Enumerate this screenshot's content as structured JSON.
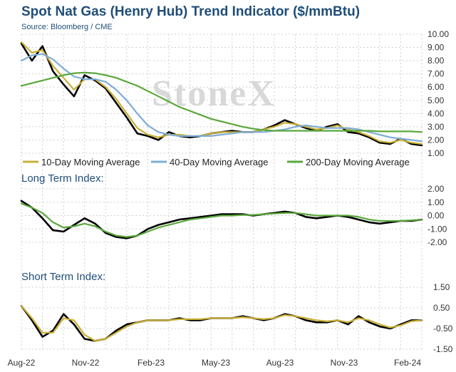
{
  "title": "Spot Nat Gas (Henry Hub) Trend Indicator ($/mmBtu)",
  "source": "Source: Bloomberg / CME",
  "watermark": "StoneX",
  "colors": {
    "price": "#000000",
    "ma10": "#c9b037",
    "ma40": "#7eadd6",
    "ma200": "#5aa83c",
    "title": "#1f4e79"
  },
  "chart_data": [
    {
      "type": "line",
      "panel": "price",
      "title": "",
      "xlabel": "",
      "ylabel": "",
      "ylim": [
        1.0,
        10.0
      ],
      "yticks": [
        "10.00",
        "9.00",
        "8.00",
        "7.00",
        "6.00",
        "5.00",
        "4.00",
        "3.00",
        "2.00",
        "1.00"
      ],
      "ytick_values": [
        10,
        9,
        8,
        7,
        6,
        5,
        4,
        3,
        2,
        1
      ],
      "x_months": [
        0,
        0.5,
        1,
        1.5,
        2,
        2.5,
        3,
        3.5,
        4,
        4.5,
        5,
        5.5,
        6,
        6.5,
        7,
        7.5,
        8,
        8.5,
        9,
        9.5,
        10,
        10.5,
        11,
        11.5,
        12,
        12.5,
        13,
        13.5,
        14,
        14.5,
        15,
        15.5,
        16,
        16.5,
        17,
        17.5,
        18,
        18.5,
        19
      ],
      "series": [
        {
          "name": "Spot",
          "color_key": "price",
          "values": [
            9.3,
            8.0,
            9.1,
            7.2,
            6.2,
            5.3,
            6.9,
            6.5,
            5.9,
            4.8,
            3.7,
            2.5,
            2.3,
            2.0,
            2.6,
            2.3,
            2.2,
            2.3,
            2.5,
            2.6,
            2.7,
            2.6,
            2.6,
            2.8,
            3.1,
            3.5,
            3.2,
            2.9,
            2.7,
            3.0,
            3.2,
            2.6,
            2.5,
            2.2,
            1.8,
            1.7,
            2.1,
            1.7,
            1.6
          ]
        },
        {
          "name": "10-Day Moving Average",
          "color_key": "ma10",
          "values": [
            9.4,
            8.6,
            8.8,
            7.6,
            6.7,
            5.8,
            6.6,
            6.6,
            6.0,
            5.1,
            4.0,
            2.9,
            2.4,
            2.2,
            2.4,
            2.4,
            2.3,
            2.3,
            2.5,
            2.6,
            2.6,
            2.6,
            2.6,
            2.8,
            3.0,
            3.3,
            3.2,
            3.0,
            2.8,
            2.9,
            3.1,
            2.8,
            2.6,
            2.3,
            1.9,
            1.8,
            2.0,
            1.8,
            1.7
          ]
        },
        {
          "name": "40-Day Moving Average",
          "color_key": "ma40",
          "values": [
            8.0,
            8.4,
            8.5,
            8.1,
            7.4,
            6.8,
            6.6,
            6.6,
            6.4,
            5.8,
            5.0,
            4.0,
            3.1,
            2.6,
            2.4,
            2.3,
            2.3,
            2.3,
            2.3,
            2.4,
            2.5,
            2.6,
            2.6,
            2.6,
            2.7,
            2.8,
            3.0,
            3.1,
            3.0,
            2.9,
            2.9,
            2.9,
            2.8,
            2.6,
            2.4,
            2.2,
            2.1,
            2.0,
            1.9
          ]
        },
        {
          "name": "200-Day Moving Average",
          "color_key": "ma200",
          "values": [
            6.1,
            6.3,
            6.5,
            6.7,
            6.9,
            7.05,
            7.1,
            7.05,
            6.9,
            6.7,
            6.4,
            6.1,
            5.7,
            5.3,
            4.9,
            4.5,
            4.2,
            3.9,
            3.6,
            3.4,
            3.2,
            3.0,
            2.85,
            2.75,
            2.7,
            2.7,
            2.7,
            2.7,
            2.7,
            2.7,
            2.7,
            2.7,
            2.7,
            2.7,
            2.65,
            2.65,
            2.65,
            2.65,
            2.6
          ]
        }
      ],
      "legend": [
        "10-Day Moving Average",
        "40-Day Moving Average",
        "200-Day Moving Average"
      ],
      "legend_position": "bottom"
    },
    {
      "type": "line",
      "panel": "long",
      "title": "Long Term Index:",
      "ylim": [
        -2.0,
        2.0
      ],
      "yticks": [
        "2.00",
        "1.00",
        "0.00",
        "-1.00",
        "-2.00"
      ],
      "ytick_values": [
        2,
        1,
        0,
        -1,
        -2
      ],
      "x_months": [
        0,
        0.5,
        1,
        1.5,
        2,
        2.5,
        3,
        3.5,
        4,
        4.5,
        5,
        5.5,
        6,
        6.5,
        7,
        7.5,
        8,
        8.5,
        9,
        9.5,
        10,
        10.5,
        11,
        11.5,
        12,
        12.5,
        13,
        13.5,
        14,
        14.5,
        15,
        15.5,
        16,
        16.5,
        17,
        17.5,
        18,
        18.5,
        19
      ],
      "series": [
        {
          "name": "",
          "color_key": "price",
          "values": [
            1.1,
            0.6,
            -0.2,
            -1.1,
            -1.2,
            -0.7,
            -0.2,
            -0.6,
            -1.3,
            -1.6,
            -1.7,
            -1.5,
            -1.0,
            -0.7,
            -0.5,
            -0.3,
            -0.2,
            -0.1,
            0.0,
            0.1,
            0.1,
            0.1,
            0.0,
            0.1,
            0.2,
            0.3,
            0.2,
            -0.1,
            -0.2,
            -0.1,
            0.0,
            -0.1,
            -0.3,
            -0.5,
            -0.6,
            -0.5,
            -0.4,
            -0.4,
            -0.3
          ]
        },
        {
          "name": "",
          "color_key": "ma200",
          "values": [
            0.9,
            0.6,
            0.2,
            -0.5,
            -0.9,
            -0.8,
            -0.6,
            -0.8,
            -1.2,
            -1.5,
            -1.6,
            -1.5,
            -1.2,
            -0.9,
            -0.7,
            -0.5,
            -0.3,
            -0.2,
            -0.1,
            0.0,
            0.0,
            0.05,
            0.05,
            0.1,
            0.15,
            0.2,
            0.2,
            0.1,
            0.0,
            0.0,
            0.0,
            0.0,
            -0.1,
            -0.3,
            -0.4,
            -0.4,
            -0.4,
            -0.35,
            -0.3
          ]
        }
      ]
    },
    {
      "type": "line",
      "panel": "short",
      "title": "Short Term Index:",
      "ylim": [
        -1.5,
        1.5
      ],
      "yticks": [
        "1.50",
        "0.50",
        "-0.50",
        "-1.50"
      ],
      "ytick_values": [
        1.5,
        0.5,
        -0.5,
        -1.5
      ],
      "x_months": [
        0,
        0.5,
        1,
        1.5,
        2,
        2.5,
        3,
        3.5,
        4,
        4.5,
        5,
        5.5,
        6,
        6.5,
        7,
        7.5,
        8,
        8.5,
        9,
        9.5,
        10,
        10.5,
        11,
        11.5,
        12,
        12.5,
        13,
        13.5,
        14,
        14.5,
        15,
        15.5,
        16,
        16.5,
        17,
        17.5,
        18,
        18.5,
        19
      ],
      "series": [
        {
          "name": "",
          "color_key": "price",
          "values": [
            0.6,
            -0.1,
            -0.9,
            -0.6,
            0.2,
            -0.3,
            -1.0,
            -1.1,
            -1.0,
            -0.6,
            -0.3,
            -0.2,
            -0.1,
            -0.1,
            -0.1,
            0.0,
            -0.1,
            -0.1,
            0.0,
            0.0,
            0.0,
            0.1,
            0.0,
            -0.1,
            0.0,
            0.2,
            0.1,
            -0.1,
            -0.2,
            -0.2,
            -0.1,
            -0.3,
            0.1,
            -0.2,
            -0.4,
            -0.5,
            -0.3,
            -0.1,
            -0.1
          ]
        },
        {
          "name": "",
          "color_key": "ma10",
          "values": [
            0.6,
            0.0,
            -0.7,
            -0.7,
            0.0,
            -0.1,
            -0.8,
            -1.1,
            -1.0,
            -0.7,
            -0.4,
            -0.2,
            -0.1,
            -0.1,
            -0.1,
            -0.05,
            -0.05,
            -0.05,
            0.0,
            0.0,
            0.0,
            0.05,
            0.0,
            -0.05,
            0.0,
            0.15,
            0.1,
            0.0,
            -0.1,
            -0.15,
            -0.1,
            -0.2,
            0.0,
            -0.1,
            -0.3,
            -0.45,
            -0.35,
            -0.15,
            -0.1
          ]
        }
      ]
    }
  ],
  "x_axis": {
    "labels": [
      "Aug-22",
      "Nov-22",
      "Feb-23",
      "May-23",
      "Aug-23",
      "Nov-23",
      "Feb-24"
    ],
    "label_months": [
      0,
      3,
      6,
      9,
      12,
      15,
      18
    ]
  }
}
